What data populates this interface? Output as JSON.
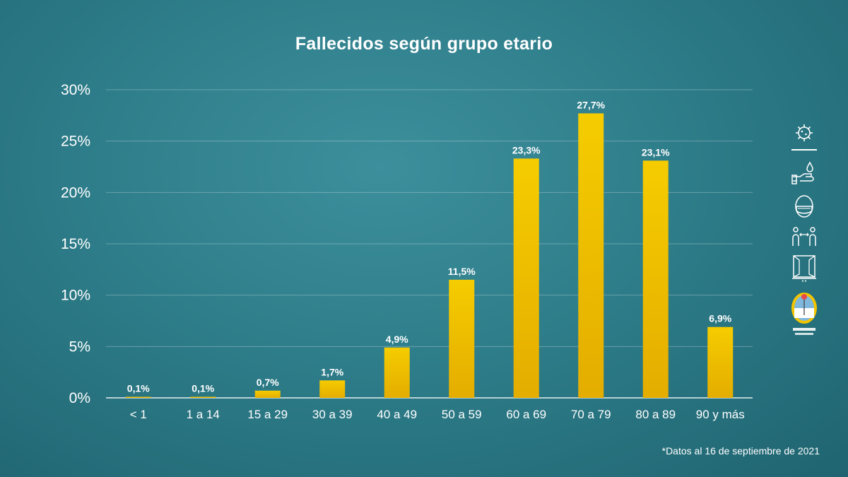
{
  "chart_data": {
    "type": "bar",
    "title": "Fallecidos según grupo etario",
    "categories": [
      "< 1",
      "1 a 14",
      "15 a 29",
      "30 a 39",
      "40 a 49",
      "50 a 59",
      "60 a 69",
      "70 a 79",
      "80 a 89",
      "90 y más"
    ],
    "values": [
      0.1,
      0.1,
      0.7,
      1.7,
      4.9,
      11.5,
      23.3,
      27.7,
      23.1,
      6.9
    ],
    "value_labels": [
      "0,1%",
      "0,1%",
      "0,7%",
      "1,7%",
      "4,9%",
      "11,5%",
      "23,3%",
      "27,7%",
      "23,1%",
      "6,9%"
    ],
    "ylim": [
      0,
      30
    ],
    "yticks": [
      0,
      5,
      10,
      15,
      20,
      25,
      30
    ],
    "ytick_labels": [
      "0%",
      "5%",
      "10%",
      "15%",
      "20%",
      "25%",
      "30%"
    ],
    "grid": true,
    "bar_color": "#f2c400",
    "bar_color_dark": "#e0a800"
  },
  "footnote": "*Datos al 16 de septiembre de 2021",
  "side_icons": [
    "virus-icon",
    "hand-washing-icon",
    "face-mask-icon",
    "social-distance-icon",
    "window-ventilation-icon",
    "mendoza-coat-of-arms-logo"
  ]
}
